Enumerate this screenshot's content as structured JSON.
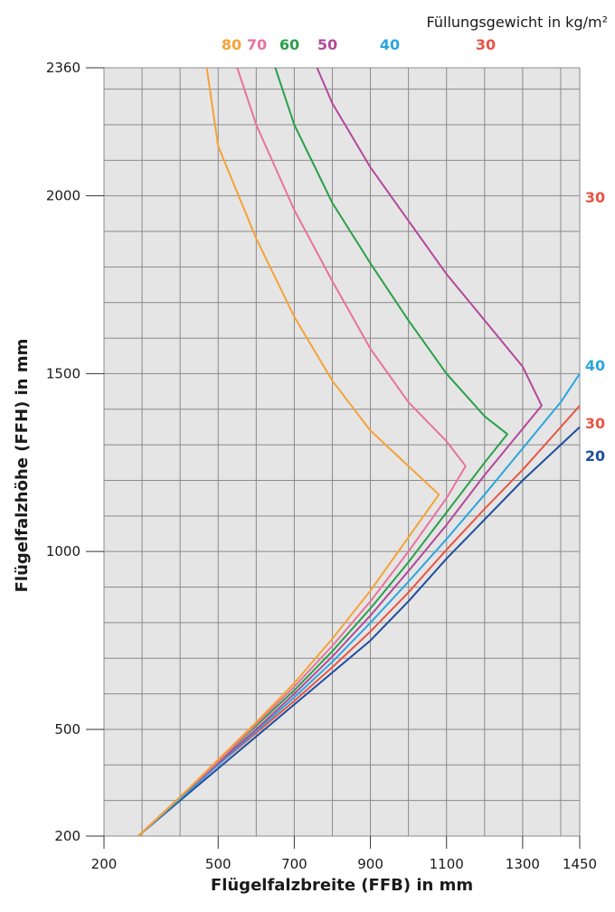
{
  "chart_data": {
    "type": "line",
    "legend_title": "Füllungsgewicht in kg/m²",
    "xlabel": "Flügelfalzbreite (FFB) in mm",
    "ylabel": "Flügelfalzhöhe (FFH) in mm",
    "xlim": [
      200,
      1450
    ],
    "ylim": [
      200,
      2360
    ],
    "x_ticks": [
      200,
      500,
      700,
      900,
      1100,
      1300,
      1450
    ],
    "y_ticks": [
      200,
      500,
      1000,
      1500,
      2000,
      2360
    ],
    "x_grid": [
      200,
      300,
      400,
      500,
      600,
      700,
      800,
      900,
      1000,
      1100,
      1200,
      1300,
      1400,
      1450
    ],
    "y_grid": [
      200,
      300,
      400,
      500,
      600,
      700,
      800,
      900,
      1000,
      1100,
      1200,
      1300,
      1400,
      1500,
      1600,
      1700,
      1800,
      1900,
      2000,
      2100,
      2200,
      2300,
      2360
    ],
    "plot_background": "#e5e5e5",
    "grid_color": "#8a8a8a",
    "series": [
      {
        "name": "20",
        "color": "#1f4e9c",
        "points": [
          [
            290,
            200
          ],
          [
            400,
            300
          ],
          [
            500,
            390
          ],
          [
            600,
            480
          ],
          [
            700,
            570
          ],
          [
            800,
            660
          ],
          [
            900,
            750
          ],
          [
            1000,
            860
          ],
          [
            1100,
            980
          ],
          [
            1200,
            1090
          ],
          [
            1300,
            1200
          ],
          [
            1400,
            1300
          ],
          [
            1450,
            1350
          ]
        ]
      },
      {
        "name": "30",
        "color": "#e85444",
        "points": [
          [
            290,
            200
          ],
          [
            400,
            305
          ],
          [
            500,
            400
          ],
          [
            600,
            490
          ],
          [
            700,
            580
          ],
          [
            800,
            675
          ],
          [
            900,
            775
          ],
          [
            1000,
            885
          ],
          [
            1100,
            1005
          ],
          [
            1200,
            1120
          ],
          [
            1300,
            1230
          ],
          [
            1400,
            1350
          ],
          [
            1450,
            1410
          ]
        ]
      },
      {
        "name": "40",
        "color": "#2ba6de",
        "points": [
          [
            290,
            200
          ],
          [
            400,
            305
          ],
          [
            500,
            400
          ],
          [
            600,
            495
          ],
          [
            700,
            590
          ],
          [
            800,
            690
          ],
          [
            900,
            800
          ],
          [
            1000,
            915
          ],
          [
            1100,
            1035
          ],
          [
            1200,
            1160
          ],
          [
            1300,
            1290
          ],
          [
            1400,
            1420
          ],
          [
            1450,
            1500
          ]
        ]
      },
      {
        "name": "50",
        "color": "#b2489a",
        "points": [
          [
            290,
            200
          ],
          [
            400,
            310
          ],
          [
            500,
            405
          ],
          [
            600,
            500
          ],
          [
            700,
            600
          ],
          [
            800,
            705
          ],
          [
            900,
            820
          ],
          [
            1000,
            945
          ],
          [
            1100,
            1075
          ],
          [
            1200,
            1215
          ],
          [
            1300,
            1345
          ],
          [
            1350,
            1410
          ],
          [
            1300,
            1520
          ],
          [
            1200,
            1650
          ],
          [
            1100,
            1780
          ],
          [
            1000,
            1930
          ],
          [
            900,
            2080
          ],
          [
            800,
            2260
          ],
          [
            760,
            2360
          ]
        ]
      },
      {
        "name": "60",
        "color": "#2aa04a",
        "points": [
          [
            290,
            200
          ],
          [
            400,
            310
          ],
          [
            500,
            410
          ],
          [
            600,
            510
          ],
          [
            700,
            610
          ],
          [
            800,
            720
          ],
          [
            900,
            840
          ],
          [
            1000,
            970
          ],
          [
            1100,
            1110
          ],
          [
            1200,
            1250
          ],
          [
            1260,
            1330
          ],
          [
            1200,
            1380
          ],
          [
            1100,
            1500
          ],
          [
            1000,
            1650
          ],
          [
            900,
            1810
          ],
          [
            800,
            1980
          ],
          [
            700,
            2200
          ],
          [
            650,
            2360
          ]
        ]
      },
      {
        "name": "70",
        "color": "#e8729e",
        "points": [
          [
            290,
            200
          ],
          [
            400,
            310
          ],
          [
            500,
            410
          ],
          [
            600,
            515
          ],
          [
            700,
            620
          ],
          [
            800,
            735
          ],
          [
            900,
            860
          ],
          [
            1000,
            1000
          ],
          [
            1100,
            1150
          ],
          [
            1150,
            1240
          ],
          [
            1100,
            1310
          ],
          [
            1000,
            1420
          ],
          [
            900,
            1570
          ],
          [
            800,
            1760
          ],
          [
            700,
            1960
          ],
          [
            600,
            2200
          ],
          [
            550,
            2360
          ]
        ]
      },
      {
        "name": "80",
        "color": "#f5a236",
        "points": [
          [
            290,
            200
          ],
          [
            400,
            310
          ],
          [
            500,
            415
          ],
          [
            600,
            520
          ],
          [
            700,
            630
          ],
          [
            800,
            755
          ],
          [
            900,
            890
          ],
          [
            1000,
            1040
          ],
          [
            1080,
            1160
          ],
          [
            1000,
            1240
          ],
          [
            900,
            1340
          ],
          [
            800,
            1480
          ],
          [
            700,
            1660
          ],
          [
            600,
            1880
          ],
          [
            500,
            2140
          ],
          [
            470,
            2360
          ]
        ]
      }
    ],
    "legend_order": [
      "80",
      "70",
      "60",
      "50",
      "40",
      "30"
    ],
    "right_labels": [
      "30",
      "40",
      "30",
      "20"
    ]
  }
}
